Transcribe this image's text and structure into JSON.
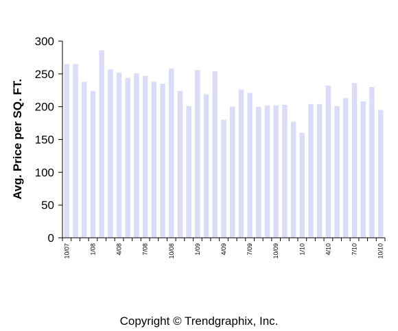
{
  "chart_data": {
    "type": "bar",
    "ylabel": "Avg. Price per SQ. FT.",
    "xlabel": "",
    "ylim": [
      0,
      300
    ],
    "yticks": [
      0,
      50,
      100,
      150,
      200,
      250,
      300
    ],
    "grid": false,
    "bar_color": "#dadcf8",
    "categories": [
      "10/07",
      "11/07",
      "12/07",
      "1/08",
      "2/08",
      "3/08",
      "4/08",
      "5/08",
      "6/08",
      "7/08",
      "8/08",
      "9/08",
      "10/08",
      "11/08",
      "12/08",
      "1/09",
      "2/09",
      "3/09",
      "4/09",
      "5/09",
      "6/09",
      "7/09",
      "8/09",
      "9/09",
      "10/09",
      "11/09",
      "12/09",
      "1/10",
      "2/10",
      "3/10",
      "4/10",
      "5/10",
      "6/10",
      "7/10",
      "8/10",
      "9/10",
      "10/10"
    ],
    "x_tick_labels": [
      {
        "index": 0,
        "label": "10/07"
      },
      {
        "index": 3,
        "label": "1/08"
      },
      {
        "index": 6,
        "label": "4/08"
      },
      {
        "index": 9,
        "label": "7/08"
      },
      {
        "index": 12,
        "label": "10/08"
      },
      {
        "index": 15,
        "label": "1/09"
      },
      {
        "index": 18,
        "label": "4/09"
      },
      {
        "index": 21,
        "label": "7/09"
      },
      {
        "index": 24,
        "label": "10/09"
      },
      {
        "index": 27,
        "label": "1/10"
      },
      {
        "index": 30,
        "label": "4/10"
      },
      {
        "index": 33,
        "label": "7/10"
      },
      {
        "index": 36,
        "label": "10/10"
      }
    ],
    "values": [
      265,
      265,
      238,
      224,
      286,
      257,
      252,
      244,
      251,
      247,
      238,
      235,
      258,
      224,
      201,
      256,
      219,
      254,
      180,
      200,
      226,
      221,
      200,
      202,
      202,
      203,
      177,
      160,
      204,
      204,
      232,
      201,
      213,
      236,
      208,
      230,
      195
    ]
  },
  "footer": {
    "copyright": "Copyright © Trendgraphix, Inc."
  }
}
